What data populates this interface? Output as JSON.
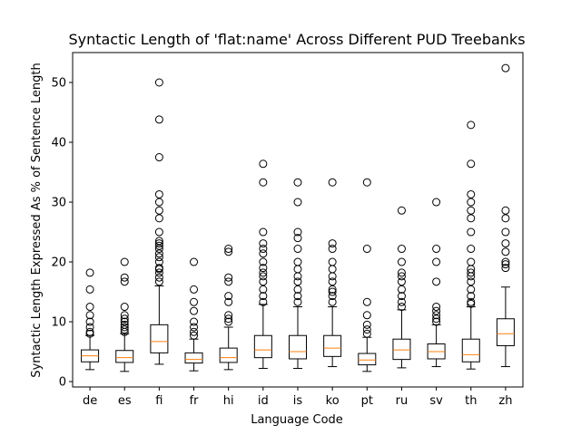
{
  "chart_data": {
    "type": "boxplot",
    "title": "Syntactic Length of 'flat:name' Across Different PUD Treebanks",
    "xlabel": "Language Code",
    "ylabel": "Syntactic Length Expressed As % of Sentence Length",
    "ylim": [
      -0.9,
      55
    ],
    "yticks": [
      0,
      10,
      20,
      30,
      40,
      50
    ],
    "grid": false,
    "colors": {
      "box": "#000000",
      "median": "#ff7f0e",
      "flier": "#000000"
    },
    "categories": [
      "de",
      "es",
      "fi",
      "fr",
      "hi",
      "id",
      "is",
      "ko",
      "pt",
      "ru",
      "sv",
      "th",
      "zh"
    ],
    "boxes": [
      {
        "label": "de",
        "whisker_low": 2.0,
        "q1": 3.3,
        "median": 4.3,
        "q3": 5.3,
        "whisker_high": 7.7,
        "fliers": [
          8.0,
          8.3,
          9.1,
          10.0,
          11.1,
          12.5,
          15.4,
          18.2
        ]
      },
      {
        "label": "es",
        "whisker_low": 1.7,
        "q1": 3.2,
        "median": 4.0,
        "q3": 5.2,
        "whisker_high": 8.0,
        "fliers": [
          8.3,
          8.7,
          9.1,
          9.5,
          10.0,
          10.5,
          11.1,
          12.5,
          16.7,
          17.4,
          20.0
        ]
      },
      {
        "label": "fi",
        "whisker_low": 2.9,
        "q1": 4.8,
        "median": 6.7,
        "q3": 9.5,
        "whisker_high": 16.0,
        "fliers": [
          16.7,
          17.4,
          18.2,
          18.8,
          19.0,
          20.0,
          20.8,
          21.4,
          22.2,
          22.7,
          23.1,
          23.5,
          25.0,
          27.3,
          28.6,
          30.0,
          31.3,
          37.5,
          43.8,
          50.0
        ]
      },
      {
        "label": "fr",
        "whisker_low": 1.8,
        "q1": 3.1,
        "median": 3.7,
        "q3": 4.8,
        "whisker_high": 7.1,
        "fliers": [
          7.7,
          8.3,
          9.1,
          10.0,
          11.8,
          13.3,
          15.4,
          20.0
        ]
      },
      {
        "label": "hi",
        "whisker_low": 2.0,
        "q1": 3.2,
        "median": 4.0,
        "q3": 5.6,
        "whisker_high": 9.1,
        "fliers": [
          10.0,
          10.5,
          11.1,
          13.3,
          14.3,
          16.7,
          17.4,
          21.7,
          22.2
        ]
      },
      {
        "label": "id",
        "whisker_low": 2.2,
        "q1": 4.0,
        "median": 5.3,
        "q3": 7.7,
        "whisker_high": 12.9,
        "fliers": [
          13.3,
          14.3,
          15.4,
          16.7,
          17.6,
          18.2,
          19.0,
          20.0,
          21.4,
          22.2,
          23.1,
          25.0,
          33.3,
          36.4
        ]
      },
      {
        "label": "is",
        "whisker_low": 2.2,
        "q1": 3.8,
        "median": 5.0,
        "q3": 7.7,
        "whisker_high": 12.5,
        "fliers": [
          13.3,
          14.3,
          15.4,
          16.7,
          17.6,
          18.8,
          20.0,
          22.2,
          24.0,
          25.0,
          30.0,
          33.3
        ]
      },
      {
        "label": "ko",
        "whisker_low": 2.5,
        "q1": 4.2,
        "median": 5.6,
        "q3": 7.7,
        "whisker_high": 12.5,
        "fliers": [
          13.3,
          14.3,
          15.0,
          15.4,
          16.7,
          17.6,
          18.8,
          20.0,
          22.2,
          23.1,
          33.3
        ]
      },
      {
        "label": "pt",
        "whisker_low": 1.7,
        "q1": 2.8,
        "median": 3.6,
        "q3": 4.7,
        "whisker_high": 7.4,
        "fliers": [
          8.0,
          8.7,
          9.5,
          11.1,
          13.3,
          22.2,
          33.3
        ]
      },
      {
        "label": "ru",
        "whisker_low": 2.3,
        "q1": 3.7,
        "median": 5.3,
        "q3": 7.1,
        "whisker_high": 12.0,
        "fliers": [
          12.5,
          13.3,
          14.3,
          15.4,
          16.7,
          17.6,
          18.2,
          20.0,
          22.2,
          28.6
        ]
      },
      {
        "label": "sv",
        "whisker_low": 2.5,
        "q1": 3.8,
        "median": 5.0,
        "q3": 6.3,
        "whisker_high": 9.5,
        "fliers": [
          10.0,
          10.5,
          11.1,
          11.8,
          12.5,
          16.7,
          20.0,
          22.2,
          30.0
        ]
      },
      {
        "label": "th",
        "whisker_low": 2.1,
        "q1": 3.3,
        "median": 4.5,
        "q3": 7.1,
        "whisker_high": 12.5,
        "fliers": [
          13.0,
          13.3,
          14.3,
          15.4,
          16.7,
          17.6,
          18.2,
          18.8,
          20.0,
          22.2,
          25.0,
          27.3,
          28.6,
          30.0,
          31.3,
          36.4,
          42.9
        ]
      },
      {
        "label": "zh",
        "whisker_low": 2.5,
        "q1": 6.0,
        "median": 8.0,
        "q3": 10.5,
        "whisker_high": 15.8,
        "fliers": [
          19.0,
          19.6,
          20.0,
          21.7,
          23.1,
          25.0,
          27.3,
          28.6,
          52.4
        ]
      }
    ]
  }
}
